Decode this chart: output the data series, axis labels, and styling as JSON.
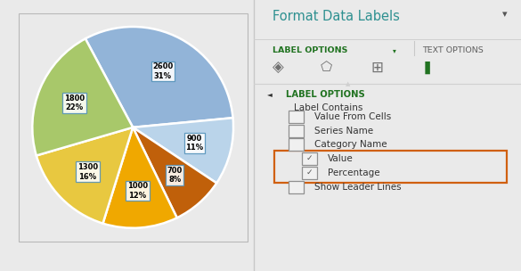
{
  "slices": [
    {
      "value": 2600,
      "pct": "31%",
      "color": "#92b4d8",
      "label": "2600\n31%"
    },
    {
      "value": 900,
      "pct": "11%",
      "color": "#bad4ea",
      "label": "900\n11%"
    },
    {
      "value": 700,
      "pct": "8%",
      "color": "#c0600a",
      "label": "700\n8%"
    },
    {
      "value": 1000,
      "pct": "12%",
      "color": "#f0a800",
      "label": "1000\n12%"
    },
    {
      "value": 1300,
      "pct": "16%",
      "color": "#e8c840",
      "label": "1300\n16%"
    },
    {
      "value": 1800,
      "pct": "22%",
      "color": "#a8c86a",
      "label": "1800\n22%"
    }
  ],
  "startangle": 56,
  "label_r": 0.6,
  "bg_color": "#eaeaea",
  "chart_bg": "#ffffff",
  "panel_bg": "#ffffff",
  "panel_title": "Format Data Labels",
  "panel_title_color": "#2e9090",
  "label_options_color": "#217321",
  "tab1": "LABEL OPTIONS",
  "tab2": "TEXT OPTIONS",
  "section_title": "LABEL OPTIONS",
  "label_contains": "Label Contains",
  "checkboxes": [
    {
      "label": "Value From Cells",
      "checked": false,
      "indent": false
    },
    {
      "label": "Series Name",
      "checked": false,
      "indent": false
    },
    {
      "label": "Category Name",
      "checked": false,
      "indent": false
    },
    {
      "label": "Value",
      "checked": true,
      "indent": true
    },
    {
      "label": "Percentage",
      "checked": true,
      "indent": true
    },
    {
      "label": "Show Leader Lines",
      "checked": false,
      "indent": false
    }
  ],
  "highlight_box_color": "#d06010"
}
